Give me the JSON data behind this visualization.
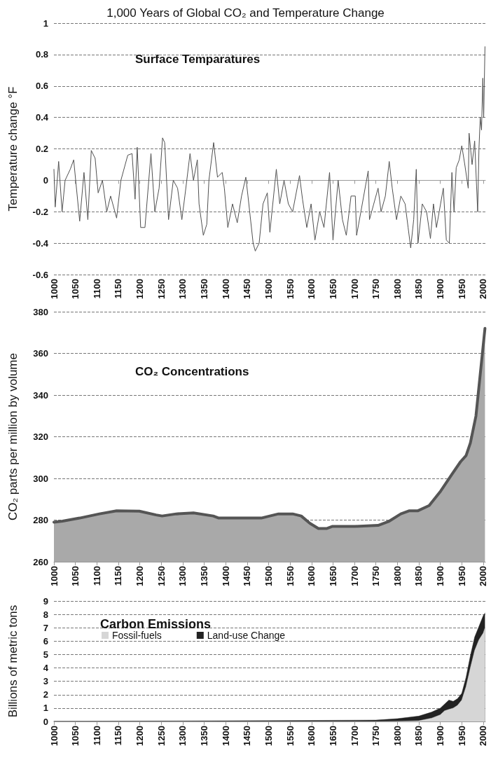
{
  "chart_data": [
    {
      "type": "line",
      "title": "1,000 Years of Global CO₂ and Temperature Change",
      "subtitle": "Surface Temparatures",
      "ylabel": "Temperature change °F",
      "xlim": [
        1000,
        2005
      ],
      "xticks": [
        1000,
        1050,
        1100,
        1150,
        1200,
        1250,
        1300,
        1350,
        1400,
        1450,
        1500,
        1550,
        1600,
        1650,
        1700,
        1750,
        1800,
        1850,
        1900,
        1950,
        2000
      ],
      "ylim": [
        -0.6,
        1
      ],
      "yticks": [
        -0.6,
        -0.4,
        -0.2,
        0,
        0.2,
        0.4,
        0.6,
        0.8,
        1
      ],
      "grid": "y",
      "series": [
        {
          "color": "#505050",
          "x": [
            1000,
            1003,
            1011,
            1019,
            1026,
            1038,
            1046,
            1060,
            1070,
            1079,
            1087,
            1096,
            1103,
            1113,
            1123,
            1132,
            1146,
            1156,
            1172,
            1182,
            1189,
            1194,
            1202,
            1212,
            1226,
            1235,
            1245,
            1253,
            1258,
            1267,
            1278,
            1288,
            1298,
            1305,
            1317,
            1325,
            1334,
            1338,
            1348,
            1356,
            1361,
            1372,
            1381,
            1392,
            1397,
            1405,
            1416,
            1427,
            1437,
            1447,
            1452,
            1464,
            1469,
            1478,
            1487,
            1497,
            1503,
            1518,
            1526,
            1536,
            1546,
            1556,
            1572,
            1579,
            1589,
            1599,
            1608,
            1619,
            1629,
            1642,
            1650,
            1662,
            1672,
            1681,
            1692,
            1702,
            1705,
            1715,
            1732,
            1735,
            1745,
            1755,
            1762,
            1772,
            1781,
            1788,
            1798,
            1808,
            1818,
            1825,
            1831,
            1838,
            1844,
            1848,
            1858,
            1868,
            1877,
            1884,
            1891,
            1907,
            1914,
            1921,
            1927,
            1932,
            1937,
            1944,
            1950,
            1957,
            1965,
            1967,
            1974,
            1980,
            1987,
            1990,
            1993,
            1996,
            1999,
            2001,
            2004
          ],
          "values": [
            0.07,
            -0.17,
            0.12,
            -0.2,
            0,
            0.07,
            0.13,
            -0.26,
            0.05,
            -0.25,
            0.19,
            0.14,
            -0.08,
            0,
            -0.2,
            -0.1,
            -0.24,
            0,
            0.16,
            0.17,
            -0.12,
            0.21,
            -0.3,
            -0.3,
            0.17,
            -0.2,
            -0.05,
            0.27,
            0.24,
            -0.25,
            0,
            -0.05,
            -0.25,
            -0.1,
            0.17,
            0,
            0.13,
            -0.15,
            -0.35,
            -0.28,
            0,
            0.24,
            0.02,
            0.05,
            -0.05,
            -0.3,
            -0.15,
            -0.27,
            -0.1,
            0.02,
            -0.1,
            -0.4,
            -0.45,
            -0.4,
            -0.15,
            -0.08,
            -0.33,
            0.07,
            -0.15,
            0,
            -0.15,
            -0.2,
            0.03,
            -0.12,
            -0.3,
            -0.15,
            -0.38,
            -0.2,
            -0.3,
            0.05,
            -0.38,
            0,
            -0.25,
            -0.35,
            -0.1,
            -0.1,
            -0.35,
            -0.2,
            0.06,
            -0.25,
            -0.15,
            -0.05,
            -0.2,
            -0.1,
            0.12,
            -0.05,
            -0.25,
            -0.1,
            -0.15,
            -0.3,
            -0.43,
            -0.25,
            0.07,
            -0.4,
            -0.15,
            -0.2,
            -0.37,
            -0.15,
            -0.3,
            -0.05,
            -0.38,
            -0.4,
            0.05,
            -0.2,
            0.08,
            0.13,
            0.22,
            0.1,
            -0.05,
            0.3,
            0.1,
            0.25,
            -0.2,
            0.2,
            0.4,
            0.32,
            0.65,
            0.4,
            0.85
          ]
        }
      ]
    },
    {
      "type": "area",
      "title": "CO₂ Concentrations",
      "ylabel": "CO₂ parts per million by volume",
      "xlim": [
        1000,
        2005
      ],
      "xticks": [
        1000,
        1050,
        1100,
        1150,
        1200,
        1250,
        1300,
        1350,
        1400,
        1450,
        1500,
        1550,
        1600,
        1650,
        1700,
        1750,
        1800,
        1850,
        1900,
        1950,
        2000
      ],
      "ylim": [
        260,
        380
      ],
      "yticks": [
        260,
        280,
        300,
        320,
        340,
        360,
        380
      ],
      "grid": "y",
      "series": [
        {
          "color": "#555555",
          "x": [
            1000,
            1020,
            1060,
            1106,
            1146,
            1199,
            1238,
            1252,
            1285,
            1325,
            1371,
            1384,
            1417,
            1483,
            1523,
            1556,
            1576,
            1596,
            1616,
            1636,
            1649,
            1702,
            1755,
            1781,
            1808,
            1828,
            1848,
            1874,
            1901,
            1927,
            1947,
            1960,
            1970,
            1983,
            1993,
            1999,
            2004
          ],
          "values": [
            279,
            279.5,
            281,
            283,
            284.5,
            284.3,
            282.5,
            282,
            283,
            283.5,
            282,
            281,
            281,
            281,
            283,
            283,
            282,
            278.5,
            276,
            276,
            277,
            277,
            277.5,
            279.5,
            283,
            284.5,
            284.5,
            287,
            294,
            302,
            308,
            311,
            317,
            330,
            350,
            362,
            372
          ]
        }
      ]
    },
    {
      "type": "area",
      "stacked": true,
      "title": "Carbon Emissions",
      "ylabel": "Billions of metric tons",
      "legend": "top left",
      "xlim": [
        1000,
        2005
      ],
      "xticks": [
        1000,
        1050,
        1100,
        1150,
        1200,
        1250,
        1300,
        1350,
        1400,
        1450,
        1500,
        1550,
        1600,
        1650,
        1700,
        1750,
        1800,
        1850,
        1900,
        1950,
        2000
      ],
      "ylim": [
        0,
        9
      ],
      "yticks": [
        0,
        1,
        2,
        3,
        4,
        5,
        6,
        7,
        8,
        9
      ],
      "grid": "y",
      "x": [
        1000,
        1250,
        1500,
        1750,
        1800,
        1850,
        1880,
        1900,
        1910,
        1920,
        1930,
        1940,
        1950,
        1960,
        1970,
        1980,
        1990,
        2000,
        2004
      ],
      "series": [
        {
          "name": "Fossil-fuels",
          "color": "#d6d6d6",
          "values": [
            0,
            0,
            0,
            0,
            0.01,
            0.05,
            0.25,
            0.5,
            0.8,
            0.9,
            1,
            1.2,
            1.6,
            2.6,
            4,
            5.3,
            6.1,
            6.6,
            7
          ]
        },
        {
          "name": "Land-use Change",
          "color": "#222222",
          "values": [
            0.02,
            0.04,
            0.06,
            0.1,
            0.2,
            0.35,
            0.45,
            0.5,
            0.5,
            0.7,
            0.5,
            0.5,
            0.5,
            0.7,
            0.9,
            1,
            1,
            1.3,
            1.1
          ]
        }
      ]
    }
  ]
}
